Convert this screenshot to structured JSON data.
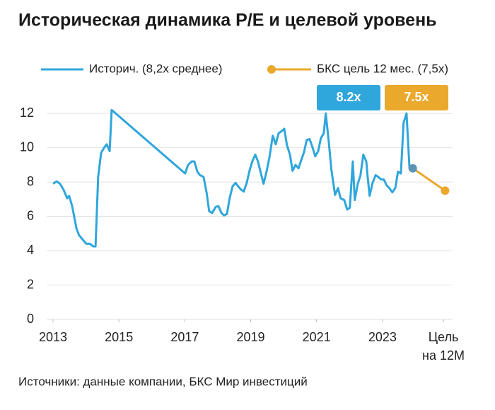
{
  "chart_data": {
    "type": "line",
    "title": "Историческая динамика P/E и целевой уровень",
    "source": "Источники: данные компании, БКС Мир инвестиций",
    "grid": true,
    "xlim": [
      2012.8,
      2025.3
    ],
    "ylim": [
      0,
      12.5
    ],
    "xticks": [
      2013,
      2015,
      2017,
      2019,
      2021,
      2023,
      {
        "value": 2024.85,
        "label": "Цель на 12М"
      }
    ],
    "yticks": [
      0,
      2,
      4,
      6,
      8,
      10,
      12
    ],
    "annotations": [
      {
        "text": "8.2x",
        "color": "#2fa6dc"
      },
      {
        "text": "7.5x",
        "color": "#eaa82c"
      }
    ],
    "series": [
      {
        "name": "Историч. (8,2x среднее)",
        "color": "#2fa6dc",
        "markers": false,
        "x": [
          2013.0,
          2013.11,
          2013.21,
          2013.32,
          2013.43,
          2013.49,
          2013.58,
          2013.71,
          2013.79,
          2013.92,
          2014.01,
          2014.12,
          2014.22,
          2014.29,
          2014.37,
          2014.46,
          2014.55,
          2014.63,
          2014.72,
          2014.78,
          2017.01,
          2017.1,
          2017.21,
          2017.29,
          2017.38,
          2017.46,
          2017.57,
          2017.66,
          2017.74,
          2017.83,
          2017.94,
          2018.02,
          2018.11,
          2018.19,
          2018.28,
          2018.36,
          2018.45,
          2018.54,
          2018.62,
          2018.71,
          2018.79,
          2018.88,
          2018.97,
          2019.05,
          2019.14,
          2019.22,
          2019.31,
          2019.39,
          2019.48,
          2019.57,
          2019.67,
          2019.76,
          2019.85,
          2019.93,
          2020.02,
          2020.1,
          2020.19,
          2020.27,
          2020.36,
          2020.45,
          2020.53,
          2020.62,
          2020.7,
          2020.79,
          2020.88,
          2020.96,
          2021.05,
          2021.13,
          2021.22,
          2021.28,
          2021.37,
          2021.45,
          2021.56,
          2021.65,
          2021.73,
          2021.84,
          2021.93,
          2022.01,
          2022.1,
          2022.16,
          2022.25,
          2022.33,
          2022.42,
          2022.51,
          2022.55,
          2022.61,
          2022.7,
          2022.79,
          2022.87,
          2022.96,
          2023.04,
          2023.13,
          2023.21,
          2023.3,
          2023.39,
          2023.47,
          2023.56,
          2023.64,
          2023.73,
          2023.82,
          2023.92
        ],
        "values": [
          7.9,
          8.04,
          7.9,
          7.55,
          7.05,
          7.2,
          6.6,
          5.3,
          4.9,
          4.6,
          4.4,
          4.4,
          4.25,
          4.25,
          8.3,
          9.7,
          10.0,
          10.2,
          9.8,
          12.2,
          8.5,
          9.0,
          9.2,
          9.2,
          8.6,
          8.4,
          8.3,
          7.4,
          6.3,
          6.2,
          6.55,
          6.6,
          6.2,
          6.05,
          6.15,
          7.05,
          7.75,
          7.95,
          7.75,
          7.55,
          7.45,
          7.95,
          8.7,
          9.2,
          9.6,
          9.2,
          8.5,
          7.9,
          8.6,
          9.45,
          10.7,
          10.2,
          10.85,
          10.95,
          11.1,
          10.15,
          9.6,
          8.65,
          9.0,
          8.8,
          9.25,
          9.75,
          10.45,
          10.5,
          10.0,
          9.5,
          9.8,
          10.55,
          10.85,
          12.0,
          10.35,
          8.7,
          7.25,
          7.65,
          7.05,
          6.95,
          6.4,
          6.5,
          9.2,
          6.95,
          7.9,
          8.35,
          9.6,
          9.2,
          8.3,
          7.2,
          7.95,
          8.4,
          8.3,
          8.15,
          8.15,
          7.8,
          7.65,
          7.4,
          7.65,
          8.6,
          8.5,
          11.45,
          12.0,
          8.8,
          8.8
        ]
      },
      {
        "name": "БКС цель 12 мес. (7,5x)",
        "color": "#eaa82c",
        "markers": true,
        "x": [
          2023.92,
          2024.9
        ],
        "values": [
          8.8,
          7.5
        ]
      }
    ]
  }
}
